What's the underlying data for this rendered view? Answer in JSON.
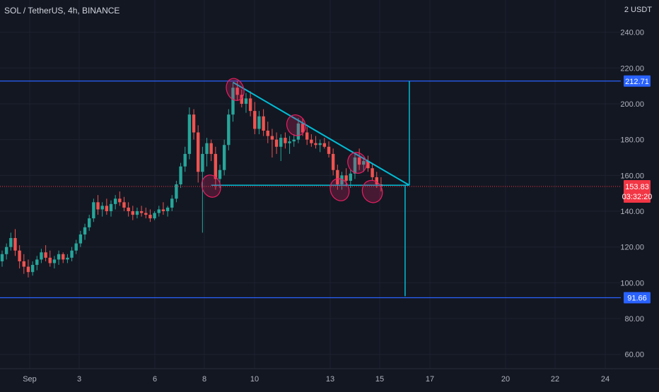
{
  "header": {
    "title": "SOL / TetherUS, 4h, BINANCE",
    "currency": "2 USDT"
  },
  "colors": {
    "background": "#131722",
    "up": "#26a69a",
    "down": "#ef5350",
    "level_line": "#2962ff",
    "pattern_line": "#00bcd4",
    "highlight": "#e91e63",
    "price_badge": "#f23645",
    "axis_text": "#b2b5be"
  },
  "chart_data": {
    "type": "candlestick",
    "ylim": [
      52,
      258
    ],
    "y_ticks": [
      {
        "value": 240,
        "label": "240.00"
      },
      {
        "value": 220,
        "label": "220.00"
      },
      {
        "value": 200,
        "label": "200.00"
      },
      {
        "value": 180,
        "label": "180.00"
      },
      {
        "value": 160,
        "label": "160.00"
      },
      {
        "value": 140,
        "label": "140.00"
      },
      {
        "value": 120,
        "label": "120.00"
      },
      {
        "value": 100,
        "label": "100.00"
      },
      {
        "value": 80,
        "label": "80.00"
      },
      {
        "value": 60,
        "label": "60.00"
      }
    ],
    "x_ticks": [
      "Sep",
      "3",
      "6",
      "8",
      "10",
      "13",
      "15",
      "17",
      "20",
      "22",
      "24"
    ],
    "levels": [
      {
        "value": 212.71,
        "label": "212.71"
      },
      {
        "value": 91.66,
        "label": "91.66"
      }
    ],
    "last_price": {
      "value": 153.83,
      "label": "153.83",
      "countdown": "03:32:20"
    },
    "candles": [
      [
        0,
        112,
        118,
        109,
        116
      ],
      [
        1,
        116,
        122,
        113,
        120
      ],
      [
        2,
        120,
        128,
        118,
        125
      ],
      [
        3,
        125,
        130,
        115,
        118
      ],
      [
        4,
        118,
        121,
        108,
        112
      ],
      [
        5,
        112,
        116,
        105,
        109
      ],
      [
        6,
        109,
        113,
        103,
        106
      ],
      [
        7,
        106,
        112,
        104,
        110
      ],
      [
        8,
        110,
        115,
        107,
        113
      ],
      [
        9,
        113,
        119,
        111,
        117
      ],
      [
        10,
        117,
        121,
        112,
        114
      ],
      [
        11,
        114,
        118,
        109,
        111
      ],
      [
        12,
        111,
        115,
        108,
        113
      ],
      [
        13,
        113,
        118,
        110,
        116
      ],
      [
        14,
        116,
        117,
        111,
        113
      ],
      [
        15,
        113,
        116,
        111,
        114
      ],
      [
        16,
        114,
        120,
        112,
        118
      ],
      [
        17,
        118,
        124,
        116,
        122
      ],
      [
        18,
        122,
        129,
        120,
        127
      ],
      [
        19,
        127,
        133,
        124,
        131
      ],
      [
        20,
        131,
        138,
        129,
        136
      ],
      [
        21,
        136,
        147,
        134,
        145
      ],
      [
        22,
        145,
        149,
        138,
        141
      ],
      [
        23,
        141,
        145,
        137,
        143
      ],
      [
        24,
        143,
        147,
        138,
        140
      ],
      [
        25,
        140,
        146,
        137,
        144
      ],
      [
        26,
        144,
        149,
        141,
        147
      ],
      [
        27,
        147,
        151,
        143,
        145
      ],
      [
        28,
        145,
        148,
        140,
        142
      ],
      [
        29,
        142,
        145,
        137,
        140
      ],
      [
        30,
        140,
        143,
        135,
        138
      ],
      [
        31,
        138,
        142,
        136,
        140
      ],
      [
        32,
        140,
        143,
        137,
        139
      ],
      [
        33,
        139,
        142,
        136,
        138
      ],
      [
        34,
        138,
        141,
        134,
        136
      ],
      [
        35,
        136,
        140,
        135,
        139
      ],
      [
        36,
        139,
        143,
        137,
        141
      ],
      [
        37,
        141,
        145,
        138,
        140
      ],
      [
        38,
        140,
        143,
        137,
        142
      ],
      [
        39,
        142,
        149,
        140,
        147
      ],
      [
        40,
        147,
        157,
        145,
        155
      ],
      [
        41,
        155,
        167,
        153,
        165
      ],
      [
        42,
        165,
        176,
        162,
        172
      ],
      [
        43,
        172,
        198,
        169,
        194
      ],
      [
        44,
        194,
        197,
        180,
        184
      ],
      [
        45,
        184,
        188,
        156,
        162
      ],
      [
        46,
        162,
        176,
        128,
        172
      ],
      [
        47,
        172,
        181,
        165,
        178
      ],
      [
        48,
        178,
        180,
        168,
        172
      ],
      [
        49,
        172,
        176,
        152,
        158
      ],
      [
        50,
        158,
        166,
        153,
        163
      ],
      [
        51,
        163,
        180,
        160,
        177
      ],
      [
        52,
        177,
        197,
        174,
        194
      ],
      [
        53,
        194,
        212,
        190,
        209
      ],
      [
        54,
        209,
        213,
        202,
        205
      ],
      [
        55,
        205,
        208,
        198,
        200
      ],
      [
        56,
        200,
        206,
        195,
        203
      ],
      [
        57,
        203,
        207,
        193,
        196
      ],
      [
        58,
        196,
        201,
        183,
        186
      ],
      [
        59,
        186,
        196,
        183,
        193
      ],
      [
        60,
        193,
        197,
        182,
        185
      ],
      [
        61,
        185,
        190,
        178,
        182
      ],
      [
        62,
        182,
        186,
        170,
        180
      ],
      [
        63,
        180,
        184,
        172,
        176
      ],
      [
        64,
        176,
        183,
        168,
        181
      ],
      [
        65,
        181,
        184,
        175,
        178
      ],
      [
        66,
        178,
        182,
        172,
        179
      ],
      [
        67,
        179,
        183,
        176,
        180
      ],
      [
        68,
        180,
        192,
        178,
        189
      ],
      [
        69,
        189,
        192,
        182,
        184
      ],
      [
        70,
        184,
        187,
        177,
        180
      ],
      [
        71,
        180,
        183,
        176,
        178
      ],
      [
        72,
        178,
        182,
        175,
        177
      ],
      [
        73,
        177,
        180,
        173,
        178
      ],
      [
        74,
        178,
        181,
        175,
        176
      ],
      [
        75,
        176,
        179,
        170,
        172
      ],
      [
        76,
        172,
        175,
        160,
        163
      ],
      [
        77,
        163,
        166,
        152,
        155
      ],
      [
        78,
        155,
        162,
        152,
        160
      ],
      [
        79,
        160,
        164,
        154,
        157
      ],
      [
        80,
        157,
        163,
        153,
        161
      ],
      [
        81,
        161,
        172,
        158,
        170
      ],
      [
        82,
        170,
        175,
        163,
        166
      ],
      [
        83,
        166,
        170,
        162,
        168
      ],
      [
        84,
        168,
        171,
        162,
        164
      ],
      [
        85,
        164,
        167,
        157,
        159
      ],
      [
        86,
        159,
        162,
        153,
        155
      ],
      [
        87,
        155,
        159,
        151,
        154
      ]
    ]
  }
}
